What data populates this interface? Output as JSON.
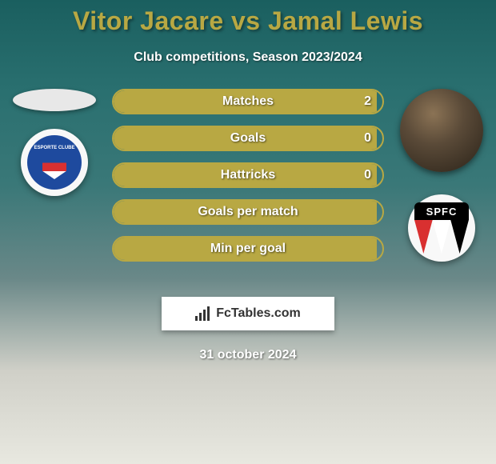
{
  "title": "Vitor Jacare vs Jamal Lewis",
  "subtitle": "Club competitions, Season 2023/2024",
  "date": "31 october 2024",
  "watermark_text": "FcTables.com",
  "colors": {
    "accent": "#b8a843",
    "title_color": "#b8a843",
    "text_light": "#ffffff"
  },
  "stats": [
    {
      "label": "Matches",
      "value": "2",
      "fill_pct": 98
    },
    {
      "label": "Goals",
      "value": "0",
      "fill_pct": 98
    },
    {
      "label": "Hattricks",
      "value": "0",
      "fill_pct": 98
    },
    {
      "label": "Goals per match",
      "value": "",
      "fill_pct": 98
    },
    {
      "label": "Min per goal",
      "value": "",
      "fill_pct": 98
    }
  ],
  "left_player": {
    "name": "Vitor Jacare",
    "club": "Bahia",
    "club_abbrev": "ESPORTE CLUBE"
  },
  "right_player": {
    "name": "Jamal Lewis",
    "club": "São Paulo FC",
    "club_abbrev": "SPFC"
  },
  "bar_style": {
    "height": 32,
    "border_radius": 18,
    "border_color": "#b8a843",
    "fill_color": "#b8a843",
    "label_fontsize": 16,
    "gap": 14
  }
}
